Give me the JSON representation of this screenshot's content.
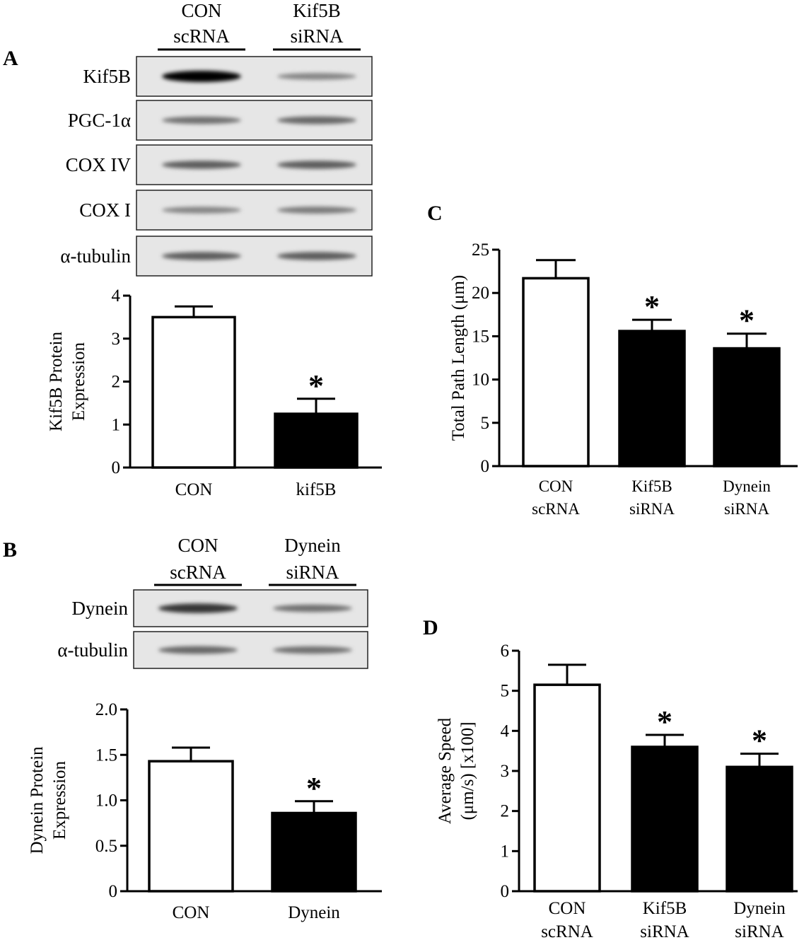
{
  "figure": {
    "panels": {
      "A": {
        "letter": "A",
        "lanes": [
          {
            "line1": "CON",
            "line2": "scRNA"
          },
          {
            "line1": "Kif5B",
            "line2": "siRNA"
          }
        ],
        "blots": [
          {
            "label": "Kif5B",
            "bands": [
              1.0,
              0.35
            ]
          },
          {
            "label": "PGC-1α",
            "bands": [
              0.45,
              0.5
            ]
          },
          {
            "label": "COX IV",
            "bands": [
              0.55,
              0.55
            ]
          },
          {
            "label": "COX I",
            "bands": [
              0.35,
              0.4
            ]
          },
          {
            "label": "α-tubulin",
            "bands": [
              0.55,
              0.55
            ]
          }
        ]
      },
      "B": {
        "letter": "B",
        "lanes": [
          {
            "line1": "CON",
            "line2": "scRNA"
          },
          {
            "line1": "Dynein",
            "line2": "siRNA"
          }
        ],
        "blots": [
          {
            "label": "Dynein",
            "bands": [
              0.75,
              0.45
            ]
          },
          {
            "label": "α-tubulin",
            "bands": [
              0.5,
              0.45
            ]
          }
        ]
      },
      "C": {
        "letter": "C"
      },
      "D": {
        "letter": "D"
      }
    }
  },
  "chart_data": [
    {
      "panel": "A",
      "type": "bar",
      "categories": [
        "CON",
        "kif5B"
      ],
      "values": [
        3.5,
        1.25
      ],
      "errors": [
        0.25,
        0.35
      ],
      "significant": [
        false,
        true
      ],
      "significance_marker": "*",
      "fills": [
        "#ffffff",
        "#000000"
      ],
      "ylabel_lines": [
        "Kif5B Protein",
        "Expression"
      ],
      "ylim": [
        0,
        4
      ],
      "yticks": [
        0,
        1,
        2,
        3,
        4
      ],
      "ytick_labels": [
        "0",
        "1",
        "2",
        "3",
        "4"
      ]
    },
    {
      "panel": "B",
      "type": "bar",
      "categories": [
        "CON",
        "Dynein"
      ],
      "values": [
        1.43,
        0.86
      ],
      "errors": [
        0.15,
        0.13
      ],
      "significant": [
        false,
        true
      ],
      "significance_marker": "*",
      "fills": [
        "#ffffff",
        "#000000"
      ],
      "ylabel_lines": [
        "Dynein Protein",
        "Expression"
      ],
      "ylim": [
        0,
        2.0
      ],
      "yticks": [
        0,
        0.5,
        1.0,
        1.5,
        2.0
      ],
      "ytick_labels": [
        "0",
        "0.5",
        "1.0",
        "1.5",
        "2.0"
      ]
    },
    {
      "panel": "C",
      "type": "bar",
      "categories": [
        [
          "CON",
          "scRNA"
        ],
        [
          "Kif5B",
          "siRNA"
        ],
        [
          "Dynein",
          "siRNA"
        ]
      ],
      "values": [
        21.7,
        15.6,
        13.6
      ],
      "errors": [
        2.1,
        1.3,
        1.7
      ],
      "significant": [
        false,
        true,
        true
      ],
      "significance_marker": "*",
      "fills": [
        "#ffffff",
        "#000000",
        "#000000"
      ],
      "ylabel_lines": [
        "Total  Path Length (μm)"
      ],
      "ylim": [
        0,
        25
      ],
      "yticks": [
        0,
        5,
        10,
        15,
        20,
        25
      ],
      "ytick_labels": [
        "0",
        "5",
        "10",
        "15",
        "20",
        "25"
      ]
    },
    {
      "panel": "D",
      "type": "bar",
      "categories": [
        [
          "CON",
          "scRNA"
        ],
        [
          "Kif5B",
          "siRNA"
        ],
        [
          "Dynein",
          "siRNA"
        ]
      ],
      "values": [
        5.15,
        3.6,
        3.1
      ],
      "errors": [
        0.5,
        0.3,
        0.33
      ],
      "significant": [
        false,
        true,
        true
      ],
      "significance_marker": "*",
      "fills": [
        "#ffffff",
        "#000000",
        "#000000"
      ],
      "ylabel_lines": [
        "Average Speed",
        "(μm/s) [x100]"
      ],
      "ylim": [
        0,
        6
      ],
      "yticks": [
        0,
        1,
        2,
        3,
        4,
        5,
        6
      ],
      "ytick_labels": [
        "0",
        "1",
        "2",
        "3",
        "4",
        "5",
        "6"
      ]
    }
  ]
}
